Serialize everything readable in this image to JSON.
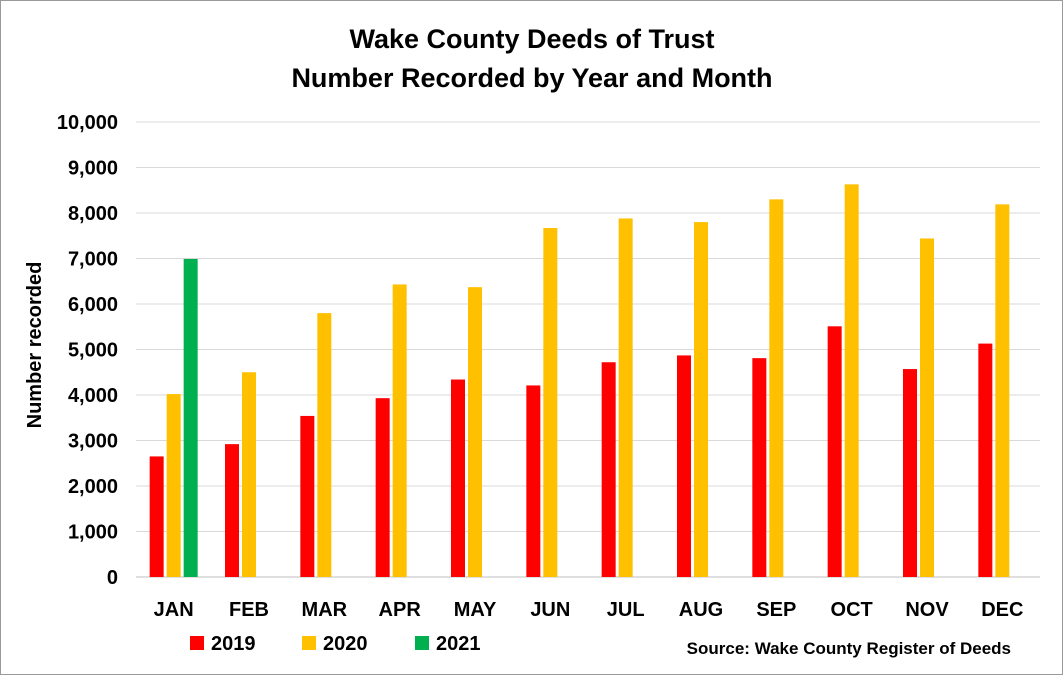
{
  "chart_data": {
    "type": "bar",
    "title": "Wake County Deeds of Trust",
    "subtitle": "Number Recorded by Year and Month",
    "xlabel": "",
    "ylabel": "Number recorded",
    "ylim": [
      0,
      10000
    ],
    "yticks": [
      "0",
      "1,000",
      "2,000",
      "3,000",
      "4,000",
      "5,000",
      "6,000",
      "7,000",
      "8,000",
      "9,000",
      "10,000"
    ],
    "categories": [
      "JAN",
      "FEB",
      "MAR",
      "APR",
      "MAY",
      "JUN",
      "JUL",
      "AUG",
      "SEP",
      "OCT",
      "NOV",
      "DEC"
    ],
    "series": [
      {
        "name": "2019",
        "color": "#ff0000",
        "values": [
          2650,
          2920,
          3540,
          3930,
          4340,
          4210,
          4720,
          4870,
          4810,
          5510,
          4570,
          5130
        ]
      },
      {
        "name": "2020",
        "color": "#ffc000",
        "values": [
          4020,
          4500,
          5800,
          6430,
          6370,
          7670,
          7880,
          7800,
          8300,
          8630,
          7440,
          8190
        ]
      },
      {
        "name": "2021",
        "color": "#00b050",
        "values": [
          6990,
          null,
          null,
          null,
          null,
          null,
          null,
          null,
          null,
          null,
          null,
          null
        ]
      }
    ],
    "grid": true,
    "legend_position": "bottom-left",
    "source": "Source: Wake County Register of Deeds"
  }
}
